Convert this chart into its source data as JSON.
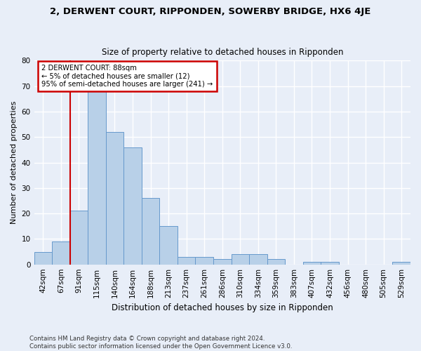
{
  "title": "2, DERWENT COURT, RIPPONDEN, SOWERBY BRIDGE, HX6 4JE",
  "subtitle": "Size of property relative to detached houses in Ripponden",
  "xlabel": "Distribution of detached houses by size in Ripponden",
  "ylabel": "Number of detached properties",
  "categories": [
    "42sqm",
    "67sqm",
    "91sqm",
    "115sqm",
    "140sqm",
    "164sqm",
    "188sqm",
    "213sqm",
    "237sqm",
    "261sqm",
    "286sqm",
    "310sqm",
    "334sqm",
    "359sqm",
    "383sqm",
    "407sqm",
    "432sqm",
    "456sqm",
    "480sqm",
    "505sqm",
    "529sqm"
  ],
  "values": [
    5,
    9,
    21,
    68,
    52,
    46,
    26,
    15,
    3,
    3,
    2,
    4,
    4,
    2,
    0,
    1,
    1,
    0,
    0,
    0,
    1
  ],
  "bar_color": "#b8d0e8",
  "bar_edge_color": "#6699cc",
  "annotation_text_line1": "2 DERWENT COURT: 88sqm",
  "annotation_text_line2": "← 5% of detached houses are smaller (12)",
  "annotation_text_line3": "95% of semi-detached houses are larger (241) →",
  "annotation_box_facecolor": "#ffffff",
  "annotation_box_edgecolor": "#cc0000",
  "vline_color": "#cc0000",
  "footer_line1": "Contains HM Land Registry data © Crown copyright and database right 2024.",
  "footer_line2": "Contains public sector information licensed under the Open Government Licence v3.0.",
  "ylim": [
    0,
    80
  ],
  "yticks": [
    0,
    10,
    20,
    30,
    40,
    50,
    60,
    70,
    80
  ],
  "bg_color": "#e8eef8",
  "grid_color": "#ffffff"
}
